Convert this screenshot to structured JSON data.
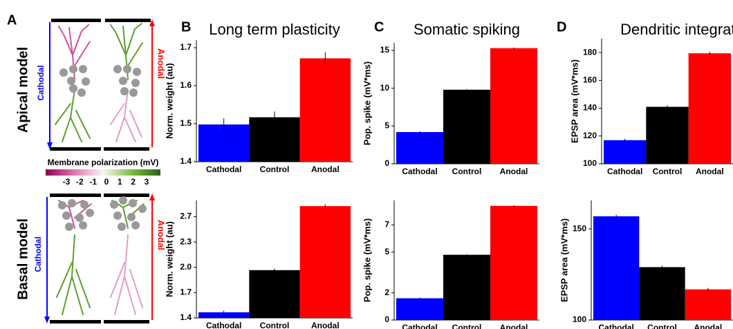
{
  "panel_a": {
    "panel": "A",
    "rows": [
      "Apical model",
      "Basal model"
    ],
    "cathodal": "Cathodal",
    "anodal": "Anodal",
    "colorbar_title": "Membrane polarization (mV)",
    "colorbar_ticks": [
      -3,
      -2,
      -1,
      0,
      1,
      2,
      3
    ]
  },
  "chart_data": [
    {
      "type": "bar",
      "panel": "B",
      "title": "Long term plasticity",
      "ylabel": "Norm. weight (au)",
      "categories": [
        "Cathodal",
        "Control",
        "Anodal"
      ],
      "values": [
        1.498,
        1.517,
        1.672
      ],
      "errors": [
        0.016,
        0.015,
        0.016
      ],
      "colors": [
        "#0000ff",
        "#000000",
        "#ff0000"
      ],
      "ylim": [
        1.4,
        1.72
      ],
      "yticks": [
        1.4,
        1.5,
        1.6,
        1.7
      ]
    },
    {
      "type": "bar",
      "panel": "C",
      "title": "Somatic spiking",
      "ylabel": "Pop. spike (mV*ms)",
      "categories": [
        "Cathodal",
        "Control",
        "Anodal"
      ],
      "values": [
        4.2,
        9.8,
        15.3
      ],
      "errors": [
        0.1,
        0.1,
        0.1
      ],
      "colors": [
        "#0000ff",
        "#000000",
        "#ff0000"
      ],
      "ylim": [
        0,
        16
      ],
      "yticks": [
        0,
        5,
        10,
        15
      ]
    },
    {
      "type": "bar",
      "panel": "D",
      "title": "Dendritic integration",
      "ylabel": "EPSP area (mV*ms)",
      "categories": [
        "Cathodal",
        "Control",
        "Anodal"
      ],
      "values": [
        117,
        141,
        179.5
      ],
      "errors": [
        1,
        1,
        1
      ],
      "colors": [
        "#0000ff",
        "#000000",
        "#ff0000"
      ],
      "ylim": [
        100,
        190
      ],
      "yticks": [
        100,
        120,
        140,
        160,
        180
      ]
    },
    {
      "type": "bar",
      "ylabel": "Norm. weight (au)",
      "categories": [
        "Cathodal",
        "Control",
        "Anodal"
      ],
      "values": [
        1.47,
        1.99,
        2.78
      ],
      "errors": [
        0.02,
        0.02,
        0.02
      ],
      "colors": [
        "#0000ff",
        "#000000",
        "#ff0000"
      ],
      "ylim": [
        1.4,
        2.85
      ],
      "yticks": [
        1.4,
        {
          "value": 1.7125,
          "label": "1.7"
        },
        {
          "value": 2.025,
          "label": "2.0"
        },
        {
          "value": 2.3375,
          "label": "2.3"
        },
        {
          "value": 2.65,
          "label": "2.7"
        }
      ]
    },
    {
      "type": "bar",
      "ylabel": "Pop. spike (mV*ms)",
      "categories": [
        "Cathodal",
        "Control",
        "Anodal"
      ],
      "values": [
        1.6,
        4.8,
        8.4
      ],
      "errors": [
        0.05,
        0.05,
        0.05
      ],
      "colors": [
        "#0000ff",
        "#000000",
        "#ff0000"
      ],
      "ylim": [
        0,
        8.8
      ],
      "yticks": [
        0,
        2,
        5,
        7
      ]
    },
    {
      "type": "bar",
      "ylabel": "EPSP area (mV*ms)",
      "categories": [
        "Cathodal",
        "Control",
        "Anodal"
      ],
      "values": [
        156.9,
        129,
        116.8
      ],
      "errors": [
        0.8,
        0.8,
        0.8
      ],
      "colors": [
        "#0000ff",
        "#000000",
        "#ff0000"
      ],
      "ylim": [
        100,
        165.6
      ],
      "yticks": [
        100,
        150
      ]
    }
  ]
}
